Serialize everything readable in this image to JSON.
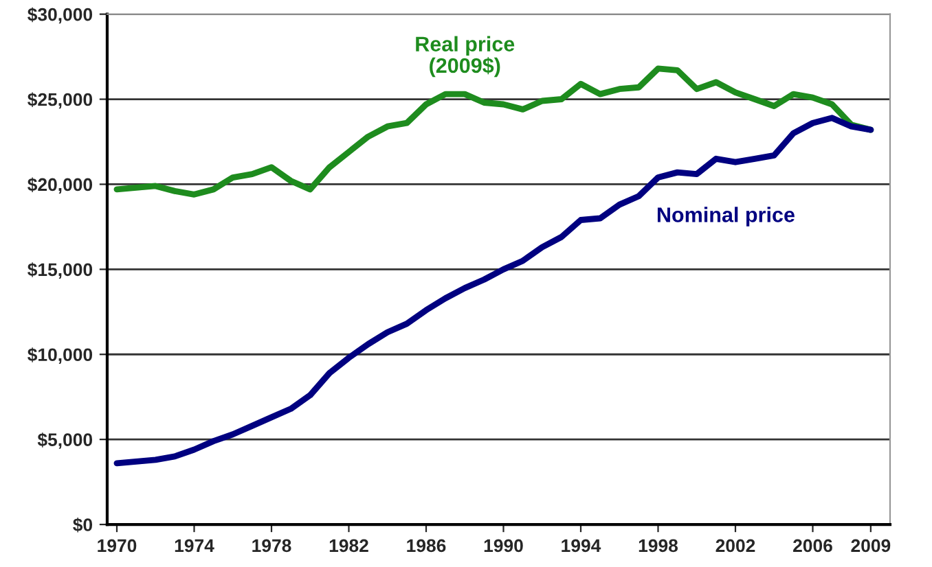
{
  "chart_data": {
    "type": "line",
    "x": [
      1970,
      1971,
      1972,
      1973,
      1974,
      1975,
      1976,
      1977,
      1978,
      1979,
      1980,
      1981,
      1982,
      1983,
      1984,
      1985,
      1986,
      1987,
      1988,
      1989,
      1990,
      1991,
      1992,
      1993,
      1994,
      1995,
      1996,
      1997,
      1998,
      1999,
      2000,
      2001,
      2002,
      2003,
      2004,
      2005,
      2006,
      2007,
      2008,
      2009
    ],
    "series": [
      {
        "name": "Real price\n(2009$)",
        "color": "#1e8c1e",
        "values": [
          19700,
          19800,
          19900,
          19600,
          19400,
          19700,
          20400,
          20600,
          21000,
          20200,
          19700,
          21000,
          21900,
          22800,
          23400,
          23600,
          24700,
          25300,
          25300,
          24800,
          24700,
          24400,
          24900,
          25000,
          25900,
          25300,
          25600,
          25700,
          26800,
          26700,
          25600,
          26000,
          25400,
          25000,
          24600,
          25300,
          25100,
          24700,
          23500,
          23200
        ]
      },
      {
        "name": "Nominal price",
        "color": "#000080",
        "values": [
          3600,
          3700,
          3800,
          4000,
          4400,
          4900,
          5300,
          5800,
          6300,
          6800,
          7600,
          8900,
          9800,
          10600,
          11300,
          11800,
          12600,
          13300,
          13900,
          14400,
          15000,
          15500,
          16300,
          16900,
          17900,
          18000,
          18800,
          19300,
          20400,
          20700,
          20600,
          21500,
          21300,
          21500,
          21700,
          23000,
          23600,
          23900,
          23400,
          23200
        ]
      }
    ],
    "xlim": [
      1969.5,
      2010
    ],
    "xticks": [
      1970,
      1974,
      1978,
      1982,
      1986,
      1990,
      1994,
      1998,
      2002,
      2006,
      2009
    ],
    "ylim": [
      0,
      30000
    ],
    "yticks": [
      {
        "value": 0,
        "label": "$0"
      },
      {
        "value": 5000,
        "label": "$5,000"
      },
      {
        "value": 10000,
        "label": "$10,000"
      },
      {
        "value": 15000,
        "label": "$15,000"
      },
      {
        "value": 20000,
        "label": "$20,000"
      },
      {
        "value": 25000,
        "label": "$25,000"
      },
      {
        "value": 30000,
        "label": "$30,000"
      }
    ],
    "grid": "y",
    "legend": false,
    "line_style": "solid",
    "marker": "none"
  }
}
